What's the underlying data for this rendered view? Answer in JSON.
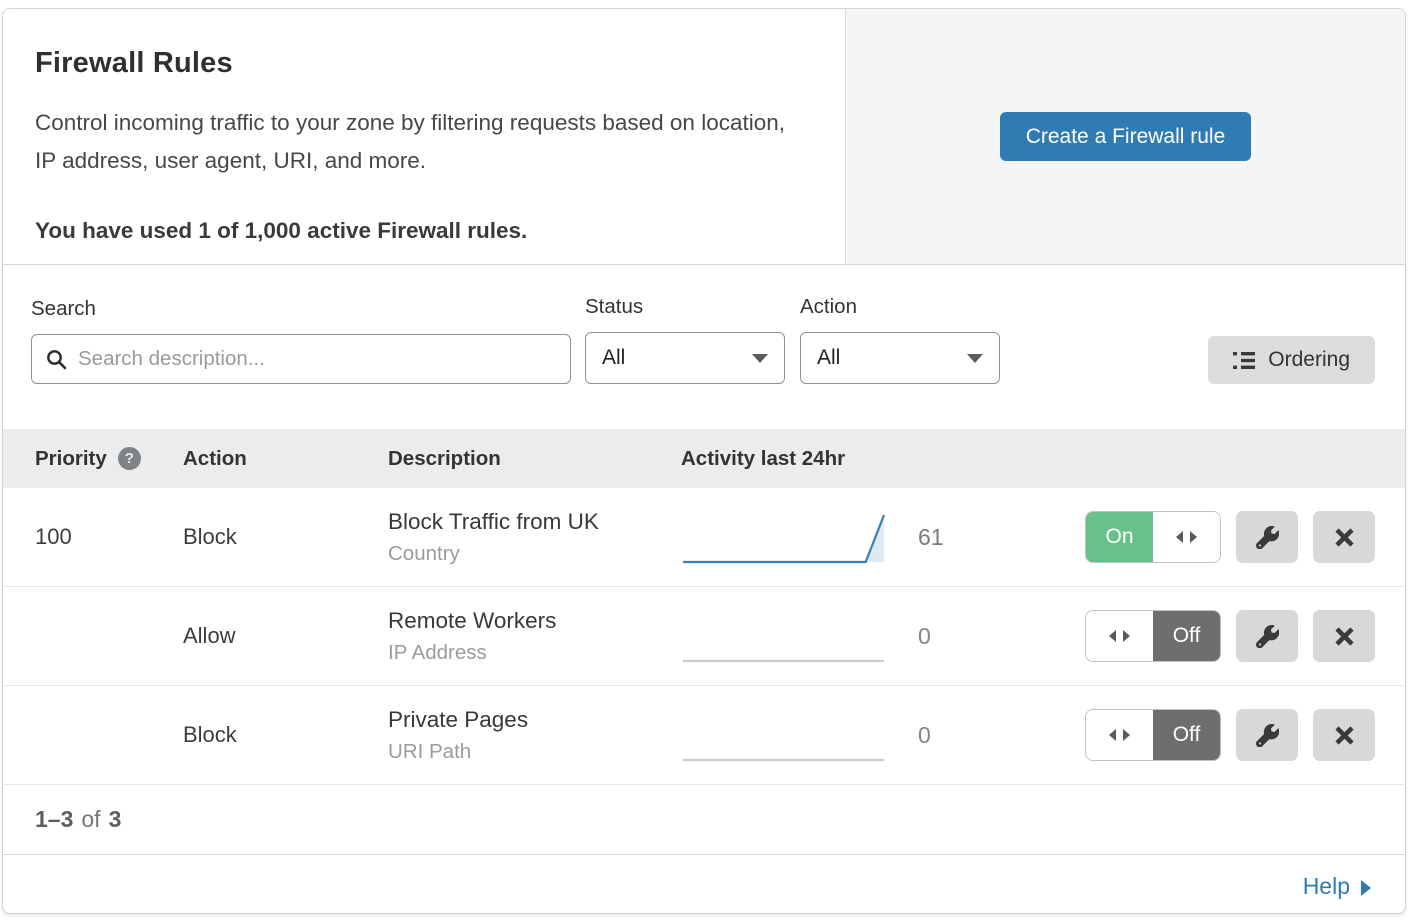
{
  "header": {
    "title": "Firewall Rules",
    "description": "Control incoming traffic to your zone by filtering requests based on location, IP address, user agent, URI, and more.",
    "usage_note": "You have used 1 of 1,000 active Firewall rules.",
    "create_button_label": "Create a Firewall rule"
  },
  "filters": {
    "search_label": "Search",
    "search_placeholder": "Search description...",
    "search_value": "",
    "status_label": "Status",
    "status_value": "All",
    "action_label": "Action",
    "action_value": "All",
    "ordering_label": "Ordering"
  },
  "table": {
    "columns": [
      "Priority",
      "Action",
      "Description",
      "Activity last 24hr"
    ],
    "priority_help_icon": "?",
    "rows": [
      {
        "priority": "100",
        "action": "Block",
        "description": "Block Traffic from UK",
        "match_type": "Country",
        "activity_value": "61",
        "enabled": true,
        "toggle_label": "On",
        "sparkline_values": [
          0,
          0,
          0,
          0,
          0,
          0,
          0,
          0,
          0,
          0,
          0,
          61
        ]
      },
      {
        "priority": "",
        "action": "Allow",
        "description": "Remote Workers",
        "match_type": "IP Address",
        "activity_value": "0",
        "enabled": false,
        "toggle_label": "Off",
        "sparkline_values": [
          0,
          0,
          0,
          0,
          0,
          0,
          0,
          0,
          0,
          0,
          0,
          0
        ]
      },
      {
        "priority": "",
        "action": "Block",
        "description": "Private Pages",
        "match_type": "URI Path",
        "activity_value": "0",
        "enabled": false,
        "toggle_label": "Off",
        "sparkline_values": [
          0,
          0,
          0,
          0,
          0,
          0,
          0,
          0,
          0,
          0,
          0,
          0
        ]
      }
    ]
  },
  "footer": {
    "range": "1–3",
    "of_label": "of",
    "total": "3",
    "help_label": "Help"
  },
  "colors": {
    "accent_blue": "#2f7cb5",
    "link_blue": "#2c7cb0",
    "toggle_on_green": "#68c08a",
    "toggle_off_gray": "#6e6e6e",
    "sparkline_active": "#3c7eb0",
    "sparkline_fill": "#ddeaf4",
    "sparkline_inactive": "#cccccc"
  }
}
